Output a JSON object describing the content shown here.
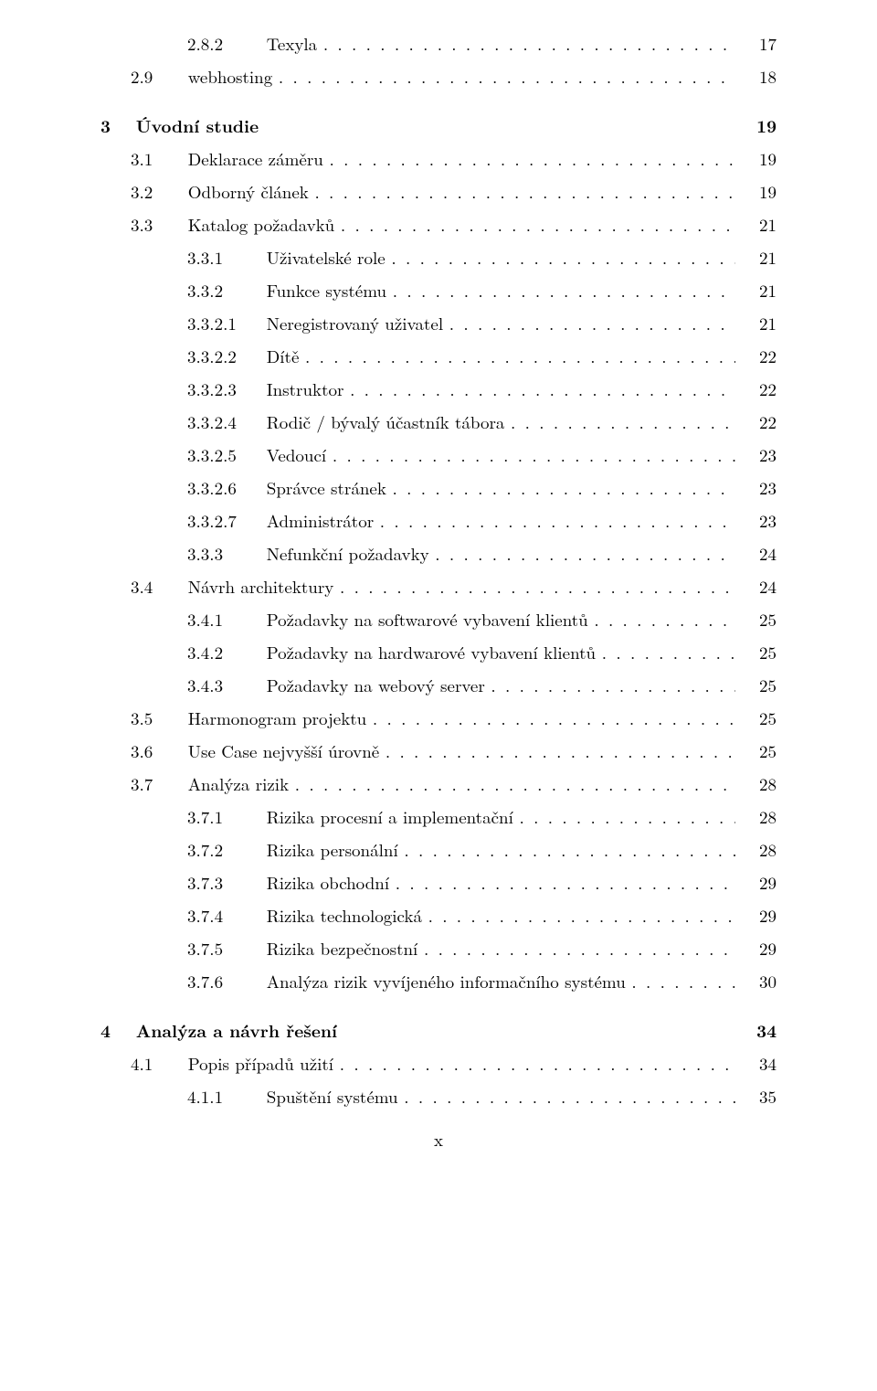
{
  "page_number_label": "x",
  "entries": [
    {
      "level": 2,
      "num": "2.8.2",
      "title": "Texyla",
      "page": "17",
      "bold": false,
      "dots": true
    },
    {
      "level": 1,
      "num": "2.9",
      "title": "webhosting",
      "page": "18",
      "bold": false,
      "dots": true
    },
    {
      "gap": true
    },
    {
      "level": 0,
      "num": "3",
      "title": "Úvodní studie",
      "page": "19",
      "bold": true,
      "dots": false
    },
    {
      "level": 1,
      "num": "3.1",
      "title": "Deklarace záměru",
      "page": "19",
      "bold": false,
      "dots": true
    },
    {
      "level": 1,
      "num": "3.2",
      "title": "Odborný článek",
      "page": "19",
      "bold": false,
      "dots": true
    },
    {
      "level": 1,
      "num": "3.3",
      "title": "Katalog požadavků",
      "page": "21",
      "bold": false,
      "dots": true
    },
    {
      "level": 2,
      "num": "3.3.1",
      "title": "Uživatelské role",
      "page": "21",
      "bold": false,
      "dots": true
    },
    {
      "level": 2,
      "num": "3.3.2",
      "title": "Funkce systému",
      "page": "21",
      "bold": false,
      "dots": true
    },
    {
      "level": 3,
      "num": "3.3.2.1",
      "title": "Neregistrovaný uživatel",
      "page": "21",
      "bold": false,
      "dots": true
    },
    {
      "level": 3,
      "num": "3.3.2.2",
      "title": "Dítě",
      "page": "22",
      "bold": false,
      "dots": true
    },
    {
      "level": 3,
      "num": "3.3.2.3",
      "title": "Instruktor",
      "page": "22",
      "bold": false,
      "dots": true
    },
    {
      "level": 3,
      "num": "3.3.2.4",
      "title": "Rodič / bývalý účastník tábora",
      "page": "22",
      "bold": false,
      "dots": true
    },
    {
      "level": 3,
      "num": "3.3.2.5",
      "title": "Vedoucí",
      "page": "23",
      "bold": false,
      "dots": true
    },
    {
      "level": 3,
      "num": "3.3.2.6",
      "title": "Správce stránek",
      "page": "23",
      "bold": false,
      "dots": true
    },
    {
      "level": 3,
      "num": "3.3.2.7",
      "title": "Administrátor",
      "page": "23",
      "bold": false,
      "dots": true
    },
    {
      "level": 2,
      "num": "3.3.3",
      "title": "Nefunkční požadavky",
      "page": "24",
      "bold": false,
      "dots": true
    },
    {
      "level": 1,
      "num": "3.4",
      "title": "Návrh architektury",
      "page": "24",
      "bold": false,
      "dots": true
    },
    {
      "level": 2,
      "num": "3.4.1",
      "title": "Požadavky na softwarové vybavení klientů",
      "page": "25",
      "bold": false,
      "dots": true
    },
    {
      "level": 2,
      "num": "3.4.2",
      "title": "Požadavky na hardwarové vybavení klientů",
      "page": "25",
      "bold": false,
      "dots": true
    },
    {
      "level": 2,
      "num": "3.4.3",
      "title": "Požadavky na webový server",
      "page": "25",
      "bold": false,
      "dots": true
    },
    {
      "level": 1,
      "num": "3.5",
      "title": "Harmonogram projektu",
      "page": "25",
      "bold": false,
      "dots": true
    },
    {
      "level": 1,
      "num": "3.6",
      "title": "Use Case nejvyšší úrovně",
      "page": "25",
      "bold": false,
      "dots": true
    },
    {
      "level": 1,
      "num": "3.7",
      "title": "Analýza rizik",
      "page": "28",
      "bold": false,
      "dots": true
    },
    {
      "level": 2,
      "num": "3.7.1",
      "title": "Rizika procesní a implementační",
      "page": "28",
      "bold": false,
      "dots": true
    },
    {
      "level": 2,
      "num": "3.7.2",
      "title": "Rizika personální",
      "page": "28",
      "bold": false,
      "dots": true
    },
    {
      "level": 2,
      "num": "3.7.3",
      "title": "Rizika obchodní",
      "page": "29",
      "bold": false,
      "dots": true
    },
    {
      "level": 2,
      "num": "3.7.4",
      "title": "Rizika technologická",
      "page": "29",
      "bold": false,
      "dots": true
    },
    {
      "level": 2,
      "num": "3.7.5",
      "title": "Rizika bezpečnostní",
      "page": "29",
      "bold": false,
      "dots": true
    },
    {
      "level": 2,
      "num": "3.7.6",
      "title": "Analýza rizik vyvíjeného informačního systému",
      "page": "30",
      "bold": false,
      "dots": true
    },
    {
      "gap": true
    },
    {
      "level": 0,
      "num": "4",
      "title": "Analýza a návrh řešení",
      "page": "34",
      "bold": true,
      "dots": false
    },
    {
      "level": 1,
      "num": "4.1",
      "title": "Popis případů užití",
      "page": "34",
      "bold": false,
      "dots": true
    },
    {
      "level": 2,
      "num": "4.1.1",
      "title": "Spuštění systému",
      "page": "35",
      "bold": false,
      "dots": true
    }
  ]
}
